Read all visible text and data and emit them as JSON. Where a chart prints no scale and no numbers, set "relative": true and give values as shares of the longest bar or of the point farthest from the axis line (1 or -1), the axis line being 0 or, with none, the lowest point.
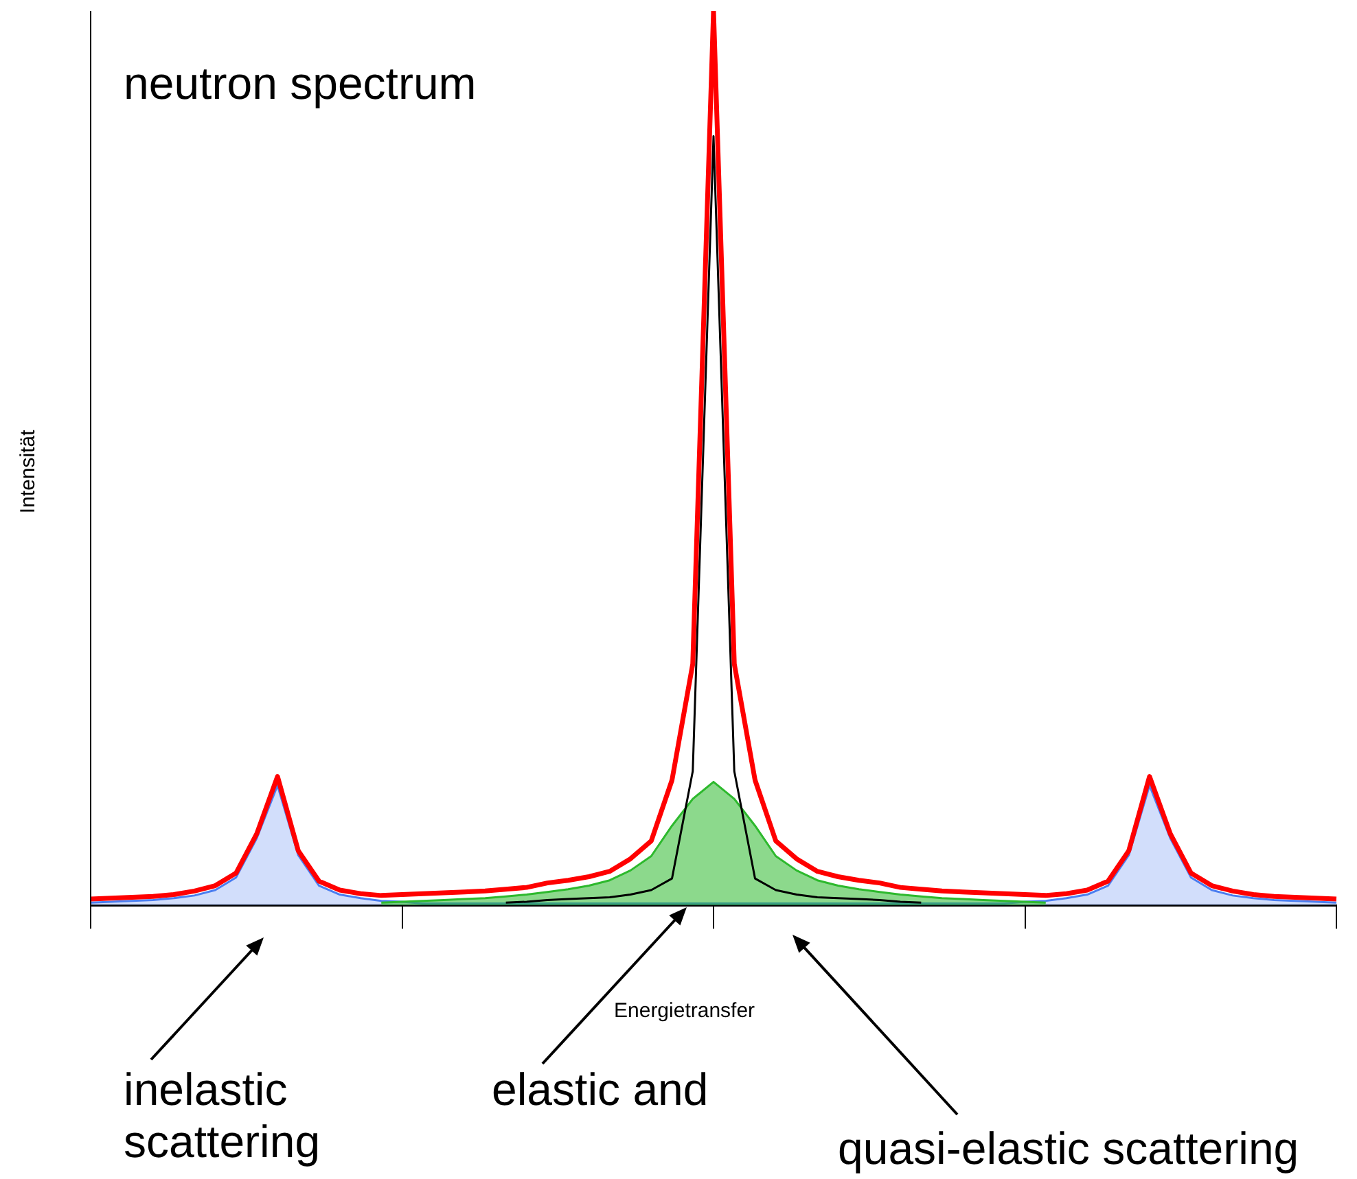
{
  "chart_data": {
    "type": "line",
    "title": "neutron spectrum",
    "xlabel": "Energietransfer",
    "ylabel": "Intensität",
    "relative": true,
    "legend": false,
    "grid": false,
    "marker": "none",
    "annotations": [
      "inelastic\nscattering",
      "elastic and",
      "quasi-elastic scattering"
    ],
    "categories": [
      null,
      null,
      null,
      null,
      null,
      null,
      null,
      null,
      null,
      null,
      null,
      null,
      null,
      null,
      null,
      null,
      null,
      null,
      null,
      null,
      null,
      null,
      null,
      null,
      null,
      null,
      null,
      null,
      null,
      null,
      null,
      null,
      null,
      null,
      null,
      null,
      null,
      null,
      null,
      null,
      null,
      null,
      null,
      null,
      null,
      null,
      null,
      null,
      null,
      null,
      null,
      null,
      null,
      null,
      null,
      null,
      null,
      null,
      null,
      null,
      null
    ],
    "series": [
      {
        "type": "area",
        "color": "#4a7df0",
        "values": [
          0.003,
          0.004,
          0.005,
          0.006,
          0.008,
          0.011,
          0.017,
          0.031,
          0.075,
          0.134,
          0.056,
          0.022,
          0.012,
          0.008,
          0.005,
          0.004,
          0.002,
          0.002,
          0.002,
          0.002,
          0.002,
          0.002,
          0.002,
          0.002,
          0.002,
          0.002,
          0.002,
          0.002,
          0.002,
          0.002,
          0.002,
          0.002,
          0.002,
          0.002,
          0.002,
          0.002,
          0.002,
          0.002,
          0.002,
          0.002,
          0.002,
          0.002,
          0.002,
          0.002,
          0.002,
          0.004,
          0.005,
          0.008,
          0.012,
          0.022,
          0.056,
          0.134,
          0.075,
          0.031,
          0.017,
          0.011,
          0.008,
          0.006,
          0.005,
          0.004,
          0.003
        ]
      },
      {
        "type": "area",
        "color": "#2db92d",
        "values": [
          null,
          null,
          null,
          null,
          null,
          null,
          null,
          null,
          null,
          null,
          null,
          null,
          null,
          null,
          0.003,
          0.004,
          0.005,
          0.006,
          0.007,
          0.008,
          0.01,
          0.012,
          0.015,
          0.018,
          0.022,
          0.028,
          0.039,
          0.055,
          0.089,
          0.119,
          0.138,
          0.119,
          0.089,
          0.055,
          0.039,
          0.028,
          0.022,
          0.018,
          0.015,
          0.012,
          0.01,
          0.008,
          0.007,
          0.006,
          0.005,
          0.004,
          0.003,
          null,
          null,
          null,
          null,
          null,
          null,
          null,
          null,
          null,
          null,
          null,
          null,
          null,
          null
        ]
      },
      {
        "type": "line",
        "color": "#000000",
        "values": [
          null,
          null,
          null,
          null,
          null,
          null,
          null,
          null,
          null,
          null,
          null,
          null,
          null,
          null,
          null,
          null,
          null,
          null,
          null,
          null,
          0.003,
          0.004,
          0.006,
          0.007,
          0.008,
          0.009,
          0.012,
          0.017,
          0.03,
          0.15,
          0.86,
          0.15,
          0.03,
          0.017,
          0.012,
          0.009,
          0.008,
          0.007,
          0.006,
          0.004,
          0.003,
          null,
          null,
          null,
          null,
          null,
          null,
          null,
          null,
          null,
          null,
          null,
          null,
          null,
          null,
          null,
          null,
          null,
          null,
          null,
          null
        ]
      },
      {
        "type": "line",
        "color": "#ff0000",
        "values": [
          0.007,
          0.008,
          0.009,
          0.01,
          0.012,
          0.016,
          0.022,
          0.036,
          0.08,
          0.144,
          0.061,
          0.027,
          0.017,
          0.013,
          0.011,
          0.012,
          0.013,
          0.014,
          0.015,
          0.016,
          0.018,
          0.02,
          0.025,
          0.028,
          0.032,
          0.038,
          0.052,
          0.072,
          0.14,
          0.27,
          1,
          0.27,
          0.14,
          0.072,
          0.052,
          0.038,
          0.032,
          0.028,
          0.025,
          0.02,
          0.018,
          0.016,
          0.015,
          0.014,
          0.013,
          0.012,
          0.011,
          0.013,
          0.017,
          0.027,
          0.061,
          0.144,
          0.08,
          0.036,
          0.022,
          0.016,
          0.012,
          0.01,
          0.009,
          0.008,
          0.007
        ]
      }
    ]
  }
}
